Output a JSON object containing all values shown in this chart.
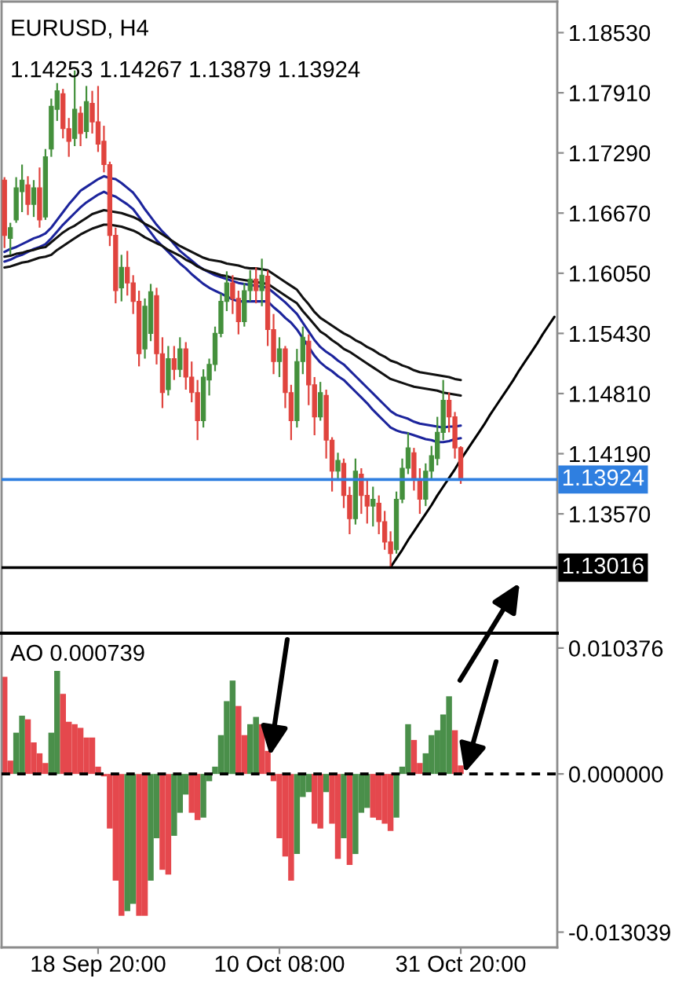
{
  "chart_data": [
    {
      "type": "candlestick",
      "title": "EURUSD, H4",
      "subtitle": "1.14253 1.14267 1.13879 1.13924",
      "categories": [
        null,
        null,
        null,
        null,
        null,
        null,
        null,
        null,
        null,
        null,
        null,
        null,
        null,
        null,
        null,
        null,
        null,
        null,
        null,
        null,
        null,
        null,
        null,
        null,
        null,
        null,
        null,
        null,
        null,
        null,
        null,
        null,
        null,
        null,
        null,
        null,
        null,
        null,
        null,
        null,
        null,
        null,
        null,
        null,
        null,
        null,
        null,
        null,
        null,
        null,
        null,
        null,
        null,
        null,
        null,
        null,
        null,
        null,
        null,
        null,
        null,
        null,
        null,
        null,
        null,
        null,
        null,
        null,
        null,
        null,
        null,
        null,
        null,
        null,
        null,
        null,
        null,
        null,
        null,
        null,
        null,
        null,
        null,
        null,
        null,
        null,
        null,
        null,
        null,
        null,
        null,
        null,
        null,
        null,
        null
      ],
      "ohlc": [
        [
          1.1701,
          1.1704,
          1.1631,
          1.1644
        ],
        [
          1.1641,
          1.1657,
          1.1624,
          1.1652
        ],
        [
          1.166,
          1.1704,
          1.1657,
          1.1693
        ],
        [
          1.1689,
          1.1717,
          1.1668,
          1.1701
        ],
        [
          1.1696,
          1.1705,
          1.1665,
          1.1676
        ],
        [
          1.1676,
          1.1701,
          1.1663,
          1.1693
        ],
        [
          1.1693,
          1.1714,
          1.1652,
          1.166
        ],
        [
          1.1663,
          1.1733,
          1.166,
          1.1725
        ],
        [
          1.1733,
          1.1785,
          1.1725,
          1.1777
        ],
        [
          1.1774,
          1.1801,
          1.1762,
          1.1793
        ],
        [
          1.179,
          1.1795,
          1.1744,
          1.1754
        ],
        [
          1.1754,
          1.1765,
          1.1725,
          1.1741
        ],
        [
          1.1744,
          1.1814,
          1.1736,
          1.1774
        ],
        [
          1.177,
          1.1777,
          1.1736,
          1.1749
        ],
        [
          1.1751,
          1.1798,
          1.1744,
          1.1782
        ],
        [
          1.178,
          1.1793,
          1.1749,
          1.1761
        ],
        [
          1.1761,
          1.1798,
          1.173,
          1.1738
        ],
        [
          1.1741,
          1.1757,
          1.1709,
          1.1717
        ],
        [
          1.1717,
          1.172,
          1.1633,
          1.1644
        ],
        [
          1.1644,
          1.1652,
          1.1574,
          1.1587
        ],
        [
          1.159,
          1.1624,
          1.1576,
          1.1611
        ],
        [
          1.1611,
          1.1628,
          1.1582,
          1.1595
        ],
        [
          1.1595,
          1.1603,
          1.1563,
          1.1576
        ],
        [
          1.1576,
          1.1587,
          1.1509,
          1.1522
        ],
        [
          1.1527,
          1.1579,
          1.1517,
          1.1571
        ],
        [
          1.1543,
          1.1594,
          1.1535,
          1.1586
        ],
        [
          1.1582,
          1.159,
          1.1511,
          1.1522
        ],
        [
          1.1522,
          1.1539,
          1.1466,
          1.1482
        ],
        [
          1.1485,
          1.153,
          1.1479,
          1.1517
        ],
        [
          1.1517,
          1.153,
          1.1495,
          1.1506
        ],
        [
          1.1506,
          1.1539,
          1.1498,
          1.1527
        ],
        [
          1.1527,
          1.1534,
          1.1485,
          1.1498
        ],
        [
          1.1498,
          1.1514,
          1.1472,
          1.1482
        ],
        [
          1.1482,
          1.1495,
          1.1433,
          1.1453
        ],
        [
          1.1453,
          1.1506,
          1.1446,
          1.1498
        ],
        [
          1.1495,
          1.1517,
          1.1479,
          1.1511
        ],
        [
          1.1511,
          1.155,
          1.1504,
          1.1543
        ],
        [
          1.1543,
          1.1584,
          1.1539,
          1.1576
        ],
        [
          1.1576,
          1.1607,
          1.1566,
          1.1595
        ],
        [
          1.1595,
          1.1603,
          1.1563,
          1.1579
        ],
        [
          1.1579,
          1.1587,
          1.1542,
          1.1555
        ],
        [
          1.1555,
          1.1595,
          1.155,
          1.1587
        ],
        [
          1.1587,
          1.1608,
          1.1576,
          1.1599
        ],
        [
          1.1599,
          1.1611,
          1.1574,
          1.1587
        ],
        [
          1.1587,
          1.162,
          1.1571,
          1.1603
        ],
        [
          1.1602,
          1.1608,
          1.153,
          1.1547
        ],
        [
          1.1547,
          1.1563,
          1.1501,
          1.1514
        ],
        [
          1.1514,
          1.1539,
          1.1498,
          1.1527
        ],
        [
          1.1527,
          1.153,
          1.1466,
          1.1482
        ],
        [
          1.1482,
          1.149,
          1.1433,
          1.1453
        ],
        [
          1.1453,
          1.1527,
          1.1446,
          1.1514
        ],
        [
          1.1514,
          1.155,
          1.1501,
          1.1539
        ],
        [
          1.1535,
          1.1542,
          1.1469,
          1.149
        ],
        [
          1.149,
          1.1498,
          1.1438,
          1.1457
        ],
        [
          1.1457,
          1.1493,
          1.1453,
          1.1482
        ],
        [
          1.1479,
          1.1485,
          1.1414,
          1.1433
        ],
        [
          1.1433,
          1.1436,
          1.138,
          1.1401
        ],
        [
          1.1401,
          1.142,
          1.1391,
          1.1412
        ],
        [
          1.1409,
          1.1414,
          1.1363,
          1.1376
        ],
        [
          1.1376,
          1.1385,
          1.1336,
          1.1352
        ],
        [
          1.1352,
          1.1414,
          1.1346,
          1.1401
        ],
        [
          1.1398,
          1.1404,
          1.1357,
          1.1376
        ],
        [
          1.1376,
          1.1393,
          1.1347,
          1.1365
        ],
        [
          1.1365,
          1.1385,
          1.1344,
          1.1372
        ],
        [
          1.1368,
          1.1376,
          1.1336,
          1.1349
        ],
        [
          1.1349,
          1.136,
          1.132,
          1.1328
        ],
        [
          1.1328,
          1.1339,
          1.1302,
          1.1316
        ],
        [
          1.132,
          1.138,
          1.1316,
          1.1372
        ],
        [
          1.1372,
          1.1414,
          1.1368,
          1.1404
        ],
        [
          1.1404,
          1.1441,
          1.1398,
          1.1425
        ],
        [
          1.142,
          1.1425,
          1.1381,
          1.1393
        ],
        [
          1.1393,
          1.1404,
          1.1357,
          1.1372
        ],
        [
          1.1372,
          1.1409,
          1.1365,
          1.1401
        ],
        [
          1.1401,
          1.1427,
          1.1393,
          1.1417
        ],
        [
          1.1414,
          1.1457,
          1.1407,
          1.1441
        ],
        [
          1.1441,
          1.1495,
          1.1433,
          1.1474
        ],
        [
          1.1474,
          1.1482,
          1.1441,
          1.1457
        ],
        [
          1.1457,
          1.1462,
          1.1414,
          1.1425
        ],
        [
          1.14253,
          1.14267,
          1.13879,
          1.13924
        ],
        null,
        null,
        null,
        null,
        null,
        null,
        null,
        null,
        null,
        null,
        null,
        null,
        null,
        null,
        null,
        null
      ],
      "colors": [
        "#e0443e",
        "#44903c",
        "#44903c",
        "#44903c",
        "#e0443e",
        "#44903c",
        "#e0443e",
        "#44903c",
        "#44903c",
        "#44903c",
        "#e0443e",
        "#e0443e",
        "#44903c",
        "#e0443e",
        "#44903c",
        "#e0443e",
        "#e0443e",
        "#e0443e",
        "#e0443e",
        "#e0443e",
        "#44903c",
        "#e0443e",
        "#e0443e",
        "#e0443e",
        "#44903c",
        "#44903c",
        "#e0443e",
        "#e0443e",
        "#44903c",
        "#e0443e",
        "#44903c",
        "#e0443e",
        "#e0443e",
        "#e0443e",
        "#44903c",
        "#44903c",
        "#44903c",
        "#44903c",
        "#44903c",
        "#e0443e",
        "#e0443e",
        "#44903c",
        "#44903c",
        "#e0443e",
        "#44903c",
        "#e0443e",
        "#e0443e",
        "#44903c",
        "#e0443e",
        "#e0443e",
        "#44903c",
        "#44903c",
        "#e0443e",
        "#e0443e",
        "#44903c",
        "#e0443e",
        "#e0443e",
        "#44903c",
        "#e0443e",
        "#e0443e",
        "#44903c",
        "#e0443e",
        "#e0443e",
        "#44903c",
        "#e0443e",
        "#e0443e",
        "#e0443e",
        "#44903c",
        "#44903c",
        "#44903c",
        "#e0443e",
        "#e0443e",
        "#44903c",
        "#44903c",
        "#44903c",
        "#44903c",
        "#e0443e",
        "#e0443e",
        "#e0443e",
        null,
        null,
        null,
        null,
        null,
        null,
        null,
        null,
        null,
        null,
        null,
        null,
        null,
        null,
        null,
        null
      ],
      "series": [
        {
          "type": "line",
          "color": "#1c249c",
          "values": [
            1.1627,
            1.163,
            1.1632,
            1.1635,
            1.1638,
            1.1641,
            1.1643,
            1.1646,
            1.1652,
            1.166,
            1.1668,
            1.1676,
            1.1683,
            1.169,
            1.1694,
            1.1698,
            1.1702,
            1.1705,
            1.1703,
            1.1702,
            1.1698,
            1.1693,
            1.1688,
            1.168,
            1.1671,
            1.1663,
            1.1655,
            1.1648,
            1.1642,
            1.1635,
            1.1628,
            1.1623,
            1.1618,
            1.1613,
            1.1609,
            1.1606,
            1.1603,
            1.1601,
            1.1599,
            1.1597,
            1.1595,
            1.1594,
            1.1593,
            1.1592,
            1.1591,
            1.159,
            1.1585,
            1.158,
            1.1575,
            1.1569,
            1.1563,
            1.1554,
            1.1545,
            1.1536,
            1.1529,
            1.1524,
            1.152,
            1.1515,
            1.1511,
            1.1505,
            1.1499,
            1.1493,
            1.1487,
            1.1481,
            1.1475,
            1.1469,
            1.1463,
            1.1459,
            1.1457,
            1.1455,
            1.1452,
            1.145,
            1.1449,
            1.1448,
            1.1447,
            1.1446,
            1.1447,
            1.1447,
            1.1448,
            null,
            null,
            null,
            null,
            null,
            null,
            null,
            null,
            null,
            null,
            null,
            null,
            null,
            null,
            null,
            null
          ]
        },
        {
          "type": "line",
          "color": "#1c249c",
          "values": [
            1.1617,
            1.1619,
            1.1622,
            1.1624,
            1.1627,
            1.163,
            1.1632,
            1.1635,
            1.1641,
            1.1648,
            1.1655,
            1.1661,
            1.1667,
            1.1673,
            1.1678,
            1.1682,
            1.1686,
            1.1689,
            1.1686,
            1.1684,
            1.168,
            1.1676,
            1.1671,
            1.1663,
            1.1655,
            1.1647,
            1.1639,
            1.1633,
            1.1627,
            1.1621,
            1.1615,
            1.161,
            1.1604,
            1.1599,
            1.1594,
            1.159,
            1.1587,
            1.1584,
            1.1581,
            1.1578,
            1.1576,
            1.1576,
            1.1576,
            1.1576,
            1.1576,
            1.1576,
            1.157,
            1.1565,
            1.1559,
            1.1554,
            1.1547,
            1.1538,
            1.1529,
            1.152,
            1.1513,
            1.1508,
            1.1504,
            1.1499,
            1.1495,
            1.1489,
            1.1483,
            1.1477,
            1.1471,
            1.1464,
            1.1458,
            1.1452,
            1.1446,
            1.1443,
            1.1441,
            1.144,
            1.1438,
            1.1436,
            1.1434,
            1.1433,
            1.1431,
            1.1431,
            1.1432,
            1.1434,
            1.1435,
            null,
            null,
            null,
            null,
            null,
            null,
            null,
            null,
            null,
            null,
            null,
            null,
            null,
            null,
            null,
            null
          ]
        },
        {
          "type": "line",
          "color": "#111111",
          "values": [
            1.1622,
            1.1623,
            1.1625,
            1.1626,
            1.1628,
            1.1629,
            1.1631,
            1.1632,
            1.1637,
            1.1642,
            1.1647,
            1.1651,
            1.1654,
            1.1658,
            1.1662,
            1.1666,
            1.1668,
            1.167,
            1.1669,
            1.1668,
            1.1667,
            1.1665,
            1.1663,
            1.166,
            1.1656,
            1.1653,
            1.1649,
            1.1645,
            1.1641,
            1.1637,
            1.1633,
            1.163,
            1.1627,
            1.1624,
            1.1621,
            1.1619,
            1.1618,
            1.1617,
            1.1615,
            1.1614,
            1.1613,
            1.1611,
            1.161,
            1.161,
            1.1609,
            1.1608,
            1.1604,
            1.16,
            1.1596,
            1.1592,
            1.1588,
            1.158,
            1.1573,
            1.1565,
            1.1559,
            1.1555,
            1.1551,
            1.1547,
            1.1543,
            1.154,
            1.1536,
            1.1533,
            1.1529,
            1.1526,
            1.1522,
            1.1519,
            1.1515,
            1.1513,
            1.151,
            1.1508,
            1.1505,
            1.1503,
            1.1502,
            1.1501,
            1.15,
            1.1499,
            1.1498,
            1.1496,
            1.1495,
            null,
            null,
            null,
            null,
            null,
            null,
            null,
            null,
            null,
            null,
            null,
            null,
            null,
            null,
            null,
            null
          ]
        },
        {
          "type": "line",
          "color": "#111111",
          "values": [
            1.1611,
            1.1612,
            1.1614,
            1.1616,
            1.1617,
            1.1619,
            1.1621,
            1.1622,
            1.1624,
            1.1629,
            1.1633,
            1.1637,
            1.1641,
            1.1645,
            1.1648,
            1.1651,
            1.1653,
            1.1655,
            1.1655,
            1.1654,
            1.1653,
            1.1651,
            1.1649,
            1.1646,
            1.1642,
            1.1639,
            1.1636,
            1.1633,
            1.1629,
            1.1626,
            1.1623,
            1.1619,
            1.1616,
            1.1612,
            1.1609,
            1.1607,
            1.1605,
            1.1603,
            1.1602,
            1.16,
            1.1599,
            1.1598,
            1.1597,
            1.1596,
            1.1595,
            1.1594,
            1.159,
            1.1586,
            1.1582,
            1.1578,
            1.1574,
            1.1566,
            1.1559,
            1.1552,
            1.1545,
            1.1541,
            1.1536,
            1.1532,
            1.1527,
            1.1524,
            1.152,
            1.1516,
            1.1512,
            1.1508,
            1.1504,
            1.15,
            1.1496,
            1.1494,
            1.1492,
            1.149,
            1.1488,
            1.1487,
            1.1486,
            1.1485,
            1.1484,
            1.1482,
            1.1481,
            1.148,
            1.1479,
            null,
            null,
            null,
            null,
            null,
            null,
            null,
            null,
            null,
            null,
            null,
            null,
            null,
            null,
            null,
            null
          ]
        },
        {
          "type": "line",
          "color": "#000000",
          "values": [
            null,
            null,
            null,
            null,
            null,
            null,
            null,
            null,
            null,
            null,
            null,
            null,
            null,
            null,
            null,
            null,
            null,
            null,
            null,
            null,
            null,
            null,
            null,
            null,
            null,
            null,
            null,
            null,
            null,
            null,
            null,
            null,
            null,
            null,
            null,
            null,
            null,
            null,
            null,
            null,
            null,
            null,
            null,
            null,
            null,
            null,
            null,
            null,
            null,
            null,
            null,
            null,
            null,
            null,
            null,
            null,
            null,
            null,
            null,
            null,
            null,
            null,
            null,
            null,
            null,
            null,
            1.1302,
            1.1311,
            1.132,
            1.133,
            1.1339,
            1.1348,
            1.1357,
            1.1366,
            1.1376,
            1.1385,
            1.1394,
            1.1403,
            1.1413,
            1.1422,
            1.1431,
            1.144,
            1.1449,
            1.1459,
            1.1468,
            1.1477,
            1.1486,
            1.1495,
            1.1505,
            1.1514,
            1.1523,
            1.1532,
            1.1542,
            1.1551,
            1.156
          ]
        }
      ],
      "ylim": [
        1.1234,
        1.1885
      ],
      "yticks": [
        {
          "value": 1.1853,
          "label": "1.18530"
        },
        {
          "value": 1.1791,
          "label": "1.17910"
        },
        {
          "value": 1.1729,
          "label": "1.17290"
        },
        {
          "value": 1.1667,
          "label": "1.16670"
        },
        {
          "value": 1.1605,
          "label": "1.16050"
        },
        {
          "value": 1.1543,
          "label": "1.15430"
        },
        {
          "value": 1.1481,
          "label": "1.14810"
        },
        {
          "value": 1.1419,
          "label": "1.14190"
        },
        {
          "value": 1.1357,
          "label": "1.13570"
        }
      ],
      "ref_lines": [
        {
          "axis": "y",
          "value": 1.13924,
          "label": "1.13924",
          "color": "#2f7fe0"
        },
        {
          "axis": "y",
          "value": 1.13016,
          "label": "1.13016",
          "color": "#000000"
        }
      ],
      "tick_labels": "y"
    },
    {
      "type": "bar",
      "title": "AO 0.000739",
      "categories": [
        null,
        null,
        null,
        null,
        null,
        null,
        null,
        null,
        null,
        null,
        null,
        null,
        null,
        null,
        null,
        null,
        "18 Sep 20:00",
        null,
        null,
        null,
        null,
        null,
        null,
        null,
        null,
        null,
        null,
        null,
        null,
        null,
        null,
        null,
        null,
        null,
        null,
        null,
        null,
        null,
        null,
        null,
        null,
        null,
        null,
        null,
        null,
        null,
        null,
        "10 Oct 08:00",
        null,
        null,
        null,
        null,
        null,
        null,
        null,
        null,
        null,
        null,
        null,
        null,
        null,
        null,
        null,
        null,
        null,
        null,
        null,
        null,
        null,
        null,
        null,
        null,
        null,
        null,
        null,
        null,
        null,
        null,
        "31 Oct 20:00",
        null,
        null,
        null,
        null,
        null,
        null,
        null,
        null,
        null,
        null,
        null,
        null,
        null,
        null,
        null,
        null
      ],
      "values": [
        0.008,
        0.0011,
        0.0034,
        0.0048,
        0.0045,
        0.0026,
        0.0017,
        0.0009,
        0.0034,
        0.0085,
        0.0066,
        0.0043,
        0.0041,
        0.0038,
        0.003,
        0.003,
        0.0006,
        -0.0002,
        -0.0045,
        -0.0088,
        -0.0117,
        -0.0113,
        -0.0107,
        -0.0117,
        -0.0117,
        -0.0088,
        -0.0053,
        -0.0079,
        -0.0083,
        -0.0051,
        -0.0032,
        -0.0017,
        -0.0032,
        -0.0038,
        -0.0036,
        -0.0006,
        0.0006,
        0.0032,
        0.006,
        0.0077,
        0.0056,
        0.0032,
        0.0041,
        0.0047,
        0.0041,
        0.0019,
        -0.0006,
        -0.0053,
        -0.0068,
        -0.0088,
        -0.0066,
        -0.0019,
        -0.0015,
        -0.0041,
        -0.0045,
        -0.0015,
        -0.0041,
        -0.007,
        -0.0053,
        -0.0075,
        -0.0066,
        -0.0032,
        -0.0028,
        -0.0036,
        -0.0038,
        -0.0041,
        -0.0047,
        -0.0036,
        0.0006,
        0.0041,
        0.0028,
        0.0009,
        0.0017,
        0.0032,
        0.0036,
        0.0049,
        0.0064,
        0.0036,
        0.0007,
        null,
        null,
        null,
        null,
        null,
        null,
        null,
        null,
        null,
        null,
        null,
        null,
        null,
        null,
        null,
        null
      ],
      "colors": [
        "#e5484d",
        "#e5484d",
        "#4a8f4a",
        "#4a8f4a",
        "#e5484d",
        "#e5484d",
        "#e5484d",
        "#e5484d",
        "#4a8f4a",
        "#4a8f4a",
        "#e5484d",
        "#e5484d",
        "#e5484d",
        "#e5484d",
        "#e5484d",
        "#e5484d",
        "#e5484d",
        "#e5484d",
        "#e5484d",
        "#e5484d",
        "#e5484d",
        "#4a8f4a",
        "#4a8f4a",
        "#e5484d",
        "#e5484d",
        "#4a8f4a",
        "#4a8f4a",
        "#e5484d",
        "#e5484d",
        "#4a8f4a",
        "#4a8f4a",
        "#4a8f4a",
        "#e5484d",
        "#e5484d",
        "#4a8f4a",
        "#4a8f4a",
        "#4a8f4a",
        "#4a8f4a",
        "#4a8f4a",
        "#4a8f4a",
        "#e5484d",
        "#e5484d",
        "#4a8f4a",
        "#4a8f4a",
        "#e5484d",
        "#e5484d",
        "#e5484d",
        "#e5484d",
        "#e5484d",
        "#e5484d",
        "#4a8f4a",
        "#4a8f4a",
        "#4a8f4a",
        "#e5484d",
        "#e5484d",
        "#4a8f4a",
        "#e5484d",
        "#e5484d",
        "#4a8f4a",
        "#e5484d",
        "#4a8f4a",
        "#4a8f4a",
        "#4a8f4a",
        "#e5484d",
        "#e5484d",
        "#e5484d",
        "#e5484d",
        "#4a8f4a",
        "#4a8f4a",
        "#4a8f4a",
        "#e5484d",
        "#e5484d",
        "#4a8f4a",
        "#4a8f4a",
        "#4a8f4a",
        "#4a8f4a",
        "#4a8f4a",
        "#e5484d",
        "#e5484d",
        null,
        null,
        null,
        null,
        null,
        null,
        null,
        null,
        null,
        null,
        null,
        null,
        null,
        null,
        null,
        null
      ],
      "ylim": [
        -0.0143,
        0.0116
      ],
      "yticks": [
        0.010376,
        {
          "value": 0,
          "label": "0.000000"
        },
        -0.013039
      ],
      "ref_lines": [
        {
          "axis": "y",
          "value": 0,
          "color": "#000000",
          "line_style": "dashed"
        }
      ]
    }
  ]
}
